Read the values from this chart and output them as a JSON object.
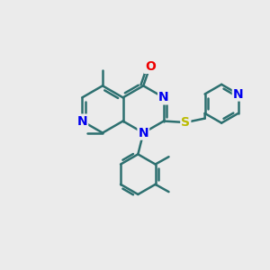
{
  "bg_color": "#ebebeb",
  "bond_color": "#2d7070",
  "N_color": "#0000ee",
  "O_color": "#ee0000",
  "S_color": "#bbbb00",
  "line_width": 1.8,
  "figsize": [
    3.0,
    3.0
  ],
  "dpi": 100,
  "xlim": [
    0,
    10
  ],
  "ylim": [
    0,
    10
  ]
}
